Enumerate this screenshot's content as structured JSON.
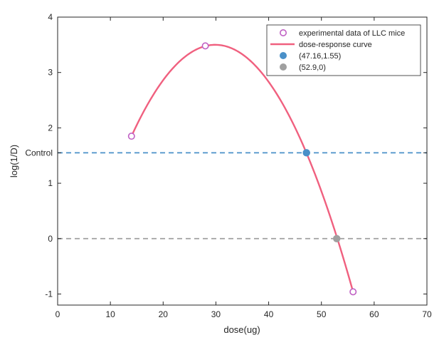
{
  "chart_data": {
    "type": "line",
    "xlabel": "dose(ug)",
    "ylabel": "log(1/D)",
    "xlim": [
      0,
      70
    ],
    "ylim": [
      -1.2,
      4
    ],
    "xticks": [
      0,
      10,
      20,
      30,
      40,
      50,
      60,
      70
    ],
    "yticks": [
      -1,
      0,
      1,
      2,
      3,
      4
    ],
    "y_extra_tick": {
      "value": 1.55,
      "label": "Control"
    },
    "grid": false,
    "legend_position": "top-right",
    "experimental": {
      "name": "experimental data of LLC mice",
      "color": "#c061c4",
      "points": [
        {
          "x": 14,
          "y": 1.85
        },
        {
          "x": 28,
          "y": 3.48
        },
        {
          "x": 56,
          "y": -0.96
        }
      ]
    },
    "curve": {
      "name": "dose-response curve",
      "color": "#f0607f",
      "x_range": [
        14,
        56
      ],
      "peak": {
        "x": 30,
        "y": 3.5
      }
    },
    "reference_lines": [
      {
        "y": 1.55,
        "color": "#4a90c8",
        "style": "dashed"
      },
      {
        "y": 0,
        "color": "#a0a0a0",
        "style": "dashed"
      }
    ],
    "markers": [
      {
        "name": "(47.16,1.55)",
        "x": 47.16,
        "y": 1.55,
        "color": "#4a90c8"
      },
      {
        "name": "(52.9,0)",
        "x": 52.9,
        "y": 0,
        "color": "#a0a0a0"
      }
    ]
  }
}
